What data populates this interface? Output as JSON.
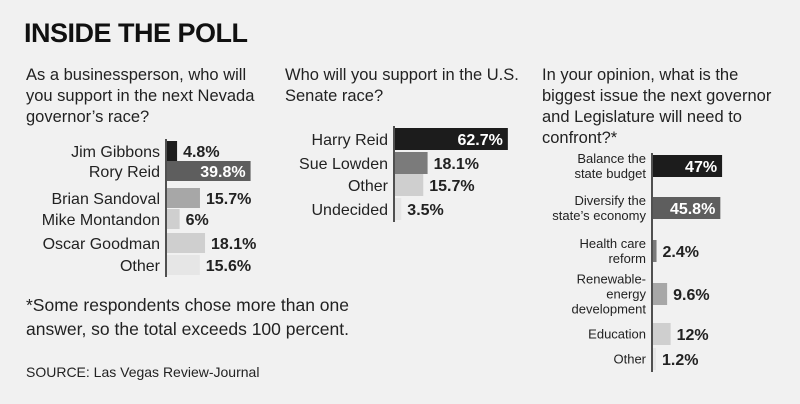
{
  "title": "INSIDE THE POLL",
  "footnote": "*Some respondents chose more than one answer, so the total exceeds 100 percent.",
  "source": "SOURCE: Las Vegas Review-Journal",
  "colors": {
    "background": "#f1f1f1",
    "text": "#1a1a1a",
    "axis": "#1a1a1a",
    "bar_shades": [
      "#1c1c1c",
      "#5e5e5e",
      "#7b7b7b",
      "#a7a7a7",
      "#cfcfcf",
      "#e6e6e6"
    ]
  },
  "chart_data": [
    {
      "type": "bar",
      "orientation": "horizontal",
      "title": "As a businessperson, who will you support in the next Nevada governor’s race?",
      "title_lines": [
        "As a businessperson, who will",
        "you support in the next Nevada",
        "governor’s race?"
      ],
      "categories": [
        "Jim Gibbons",
        "Rory Reid",
        "Brian Sandoval",
        "Mike Montandon",
        "Oscar Goodman",
        "Other"
      ],
      "category_lines": [
        [
          "Jim Gibbons"
        ],
        [
          "Rory Reid"
        ],
        [
          "Brian Sandoval"
        ],
        [
          "Mike Montandon"
        ],
        [
          "Oscar Goodman"
        ],
        [
          "Other"
        ]
      ],
      "values": [
        4.8,
        39.8,
        15.7,
        6,
        18.1,
        15.6
      ],
      "labels": [
        "4.8%",
        "39.8%",
        "15.7%",
        "6%",
        "18.1%",
        "15.6%"
      ],
      "shades": [
        0,
        1,
        3,
        4,
        4,
        5
      ],
      "label_inside": [
        false,
        true,
        false,
        false,
        false,
        false
      ]
    },
    {
      "type": "bar",
      "orientation": "horizontal",
      "title": "Who will you support in the U.S. Senate race?",
      "title_lines": [
        "Who will you support in the U.S.",
        "Senate race?"
      ],
      "categories": [
        "Harry Reid",
        "Sue Lowden",
        "Other",
        "Undecided"
      ],
      "category_lines": [
        [
          "Harry Reid"
        ],
        [
          "Sue Lowden"
        ],
        [
          "Other"
        ],
        [
          "Undecided"
        ]
      ],
      "values": [
        62.7,
        18.1,
        15.7,
        3.5
      ],
      "labels": [
        "62.7%",
        "18.1%",
        "15.7%",
        "3.5%"
      ],
      "shades": [
        0,
        2,
        4,
        5
      ],
      "label_inside": [
        true,
        false,
        false,
        false
      ]
    },
    {
      "type": "bar",
      "orientation": "horizontal",
      "title": "In your opinion, what is the biggest issue the next governor and Legislature will need to confront?*",
      "title_lines": [
        "In your opinion, what is the",
        "biggest issue the next governor",
        "and Legislature will need to",
        "confront?*"
      ],
      "categories": [
        "Balance the state budget",
        "Diversify the state’s economy",
        "Health care reform",
        "Renewable-energy development",
        "Education",
        "Other"
      ],
      "category_lines": [
        [
          "Balance the",
          "state budget"
        ],
        [
          "Diversify the",
          "state’s economy"
        ],
        [
          "Health care",
          "reform"
        ],
        [
          "Renewable-",
          "energy",
          "development"
        ],
        [
          "Education"
        ],
        [
          "Other"
        ]
      ],
      "values": [
        47,
        45.8,
        2.4,
        9.6,
        12,
        1.2
      ],
      "labels": [
        "47%",
        "45.8%",
        "2.4%",
        "9.6%",
        "12%",
        "1.2%"
      ],
      "shades": [
        0,
        1,
        2,
        3,
        4,
        5
      ],
      "label_inside": [
        true,
        true,
        false,
        false,
        false,
        false
      ]
    }
  ]
}
